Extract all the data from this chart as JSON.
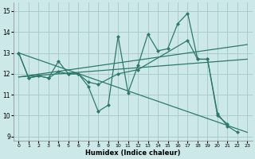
{
  "xlabel": "Humidex (Indice chaleur)",
  "background_color": "#cce8e8",
  "grid_color": "#aacccc",
  "line_color": "#2d7a6a",
  "xlim": [
    -0.5,
    23.5
  ],
  "ylim": [
    8.8,
    15.4
  ],
  "yticks": [
    9,
    10,
    11,
    12,
    13,
    14,
    15
  ],
  "xticks": [
    0,
    1,
    2,
    3,
    4,
    5,
    6,
    7,
    8,
    9,
    10,
    11,
    12,
    13,
    14,
    15,
    16,
    17,
    18,
    19,
    20,
    21,
    22,
    23
  ],
  "line1_straight": {
    "x": [
      0,
      23
    ],
    "y": [
      13.0,
      9.2
    ]
  },
  "line2_straight": {
    "x": [
      0,
      23
    ],
    "y": [
      11.85,
      13.4
    ]
  },
  "line3_straight": {
    "x": [
      0,
      23
    ],
    "y": [
      11.85,
      12.7
    ]
  },
  "line_wiggly1": {
    "x": [
      0,
      1,
      2,
      3,
      4,
      5,
      6,
      7,
      8,
      9,
      10,
      11,
      12,
      13,
      14,
      15,
      16,
      17,
      18,
      19,
      20,
      21,
      22
    ],
    "y": [
      13.0,
      11.8,
      11.9,
      11.8,
      12.6,
      12.0,
      12.0,
      11.4,
      10.2,
      10.5,
      13.8,
      11.1,
      12.4,
      13.9,
      13.1,
      13.2,
      14.4,
      14.9,
      12.7,
      12.7,
      10.1,
      9.5,
      9.2
    ]
  },
  "line_wiggly2": {
    "x": [
      0,
      1,
      2,
      3,
      4,
      5,
      6,
      7,
      8,
      10,
      12,
      17,
      18,
      19,
      20,
      21
    ],
    "y": [
      13.0,
      11.8,
      11.9,
      11.8,
      12.1,
      12.0,
      12.0,
      11.6,
      11.5,
      12.0,
      12.2,
      13.6,
      12.7,
      12.7,
      10.0,
      9.6
    ]
  }
}
